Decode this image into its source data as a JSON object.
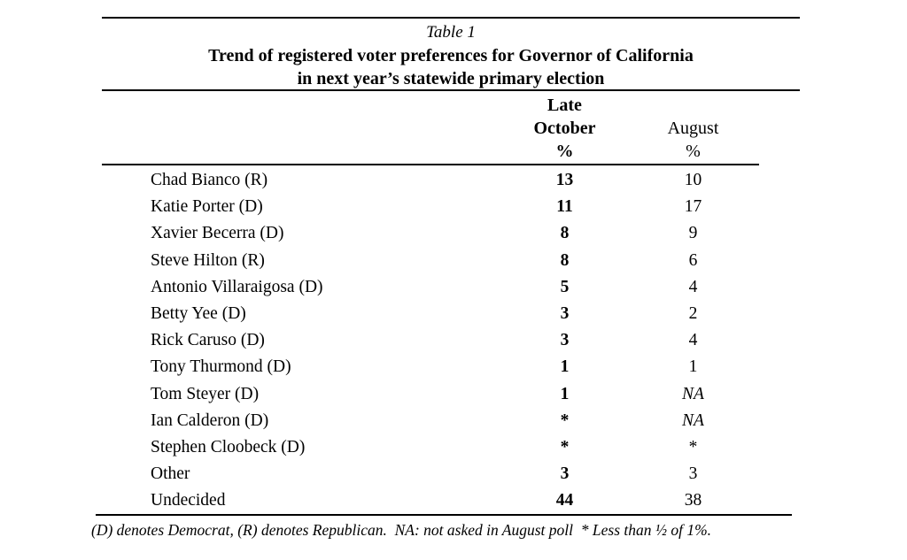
{
  "table": {
    "label": "Table 1",
    "title_line1": "Trend of registered voter preferences for Governor of California",
    "title_line2": "in next year’s statewide primary election",
    "columns": {
      "name_header": "",
      "late_october_lines": [
        "Late",
        "October",
        "%"
      ],
      "august_lines": [
        "August",
        "%"
      ]
    },
    "rows": [
      {
        "name": "Chad Bianco (R)",
        "late_october": "13",
        "august": "10"
      },
      {
        "name": "Katie Porter (D)",
        "late_october": "11",
        "august": "17"
      },
      {
        "name": "Xavier Becerra (D)",
        "late_october": "8",
        "august": "9"
      },
      {
        "name": "Steve Hilton (R)",
        "late_october": "8",
        "august": "6"
      },
      {
        "name": "Antonio Villaraigosa (D)",
        "late_october": "5",
        "august": "4"
      },
      {
        "name": "Betty Yee (D)",
        "late_october": "3",
        "august": "2"
      },
      {
        "name": "Rick Caruso (D)",
        "late_october": "3",
        "august": "4"
      },
      {
        "name": "Tony Thurmond (D)",
        "late_october": "1",
        "august": "1"
      },
      {
        "name": "Tom Steyer (D)",
        "late_october": "1",
        "august": "NA"
      },
      {
        "name": "Ian Calderon (D)",
        "late_october": "*",
        "august": "NA"
      },
      {
        "name": "Stephen Cloobeck (D)",
        "late_october": "*",
        "august": "*"
      },
      {
        "name": "Other",
        "late_october": "3",
        "august": "3"
      },
      {
        "name": "Undecided",
        "late_october": "44",
        "august": "38"
      }
    ],
    "footnote": "(D) denotes Democrat, (R) denotes Republican.  NA: not asked in August poll  * Less than ½ of 1%.",
    "text_color": "#000000",
    "background_color": "#ffffff"
  }
}
